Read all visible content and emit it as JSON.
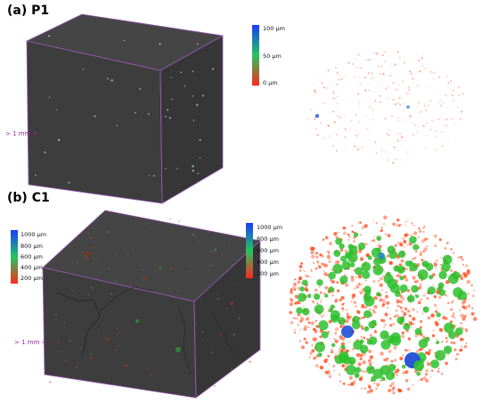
{
  "figure": {
    "panels": [
      {
        "id": "a",
        "label": "(a) P1",
        "scale_bar_label": "> 1 mm <",
        "colorbar": {
          "ticks": [
            "100 μm",
            "50 μm",
            "0 μm"
          ],
          "colors": [
            "#1a3cff",
            "#22c55e",
            "#ff2a1a"
          ]
        }
      },
      {
        "id": "b",
        "label": "(b) C1",
        "scale_bar_label": "> 1 mm <",
        "colorbar_left": {
          "ticks": [
            "1000 μm",
            "800 μm",
            "600 μm",
            "400 μm",
            "200 μm"
          ],
          "colors": [
            "#1a3cff",
            "#22c55e",
            "#ff2a1a"
          ]
        },
        "colorbar_right": {
          "ticks": [
            "1000 μm",
            "800 μm",
            "600 μm",
            "400 μm",
            "200 μm"
          ],
          "colors": [
            "#1a3cff",
            "#22c55e",
            "#ff2a1a"
          ]
        }
      }
    ],
    "colors": {
      "cube_face_dark": "#3e3e3e",
      "cube_face_top": "#454545",
      "cube_edge": "#9b59b6",
      "pore_red": "#ff4a1c",
      "pore_green": "#2ec12e",
      "pore_blue": "#1f4fd6"
    }
  }
}
